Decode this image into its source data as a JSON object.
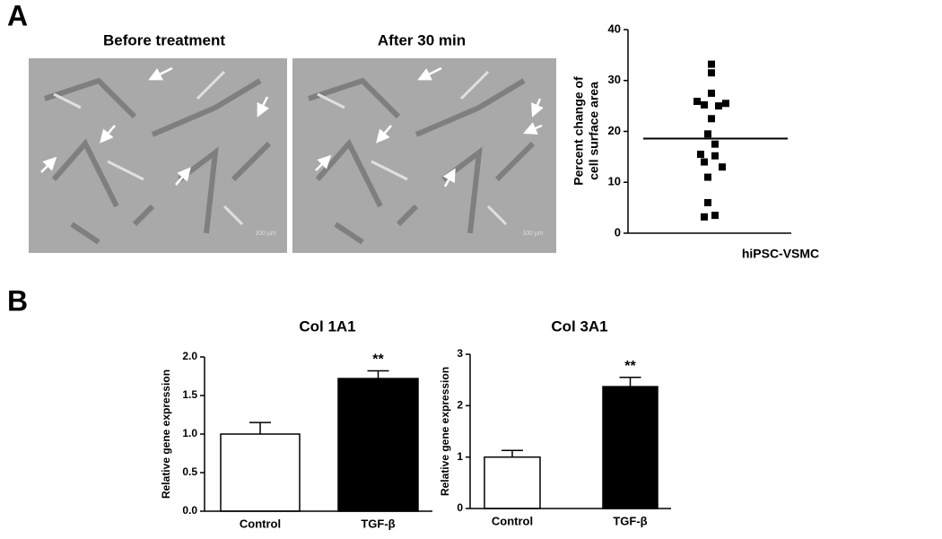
{
  "panel_labels": [
    "A",
    "B"
  ],
  "images": [
    {
      "title": "Before treatment",
      "scale_bar": "100 µm"
    },
    {
      "title": "After 30 min",
      "scale_bar": "100 µm"
    }
  ],
  "chart_data": [
    {
      "type": "scatter",
      "ylabel": [
        "Percent change of",
        "cell surface area"
      ],
      "category": "hiPSC-VSMC",
      "values": [
        33.2,
        31.5,
        27.5,
        25.9,
        25.5,
        25.2,
        25.0,
        22.5,
        19.5,
        17.5,
        15.5,
        15.2,
        14.0,
        13.0,
        11.0,
        6.0,
        3.5,
        3.2
      ],
      "mean": 18.6,
      "color": "#000000",
      "ylim": [
        0,
        40
      ],
      "yticks": [
        0,
        10,
        20,
        30,
        40
      ]
    },
    {
      "type": "bar",
      "title": "Col 1A1",
      "ylabel": "Relative gene expression",
      "categories": [
        "Control",
        "TGF-β"
      ],
      "values": [
        1.0,
        1.72
      ],
      "errors": [
        0.15,
        0.1
      ],
      "colors": [
        "#ffffff",
        "#000000"
      ],
      "annotation": "**",
      "ylim": [
        0,
        2.0
      ],
      "yticks": [
        {
          "value": 0,
          "label": "0.0"
        },
        {
          "value": 0.5,
          "label": "0.5"
        },
        {
          "value": 1.0,
          "label": "1.0"
        },
        {
          "value": 1.5,
          "label": "1.5"
        },
        {
          "value": 2.0,
          "label": "2.0"
        }
      ]
    },
    {
      "type": "bar",
      "title": "Col 3A1",
      "ylabel": "Relative gene expression",
      "categories": [
        "Control",
        "TGF-β"
      ],
      "values": [
        1.0,
        2.37
      ],
      "errors": [
        0.13,
        0.18
      ],
      "colors": [
        "#ffffff",
        "#000000"
      ],
      "annotation": "**",
      "ylim": [
        0,
        3
      ],
      "yticks": [
        0,
        1,
        2,
        3
      ]
    }
  ]
}
